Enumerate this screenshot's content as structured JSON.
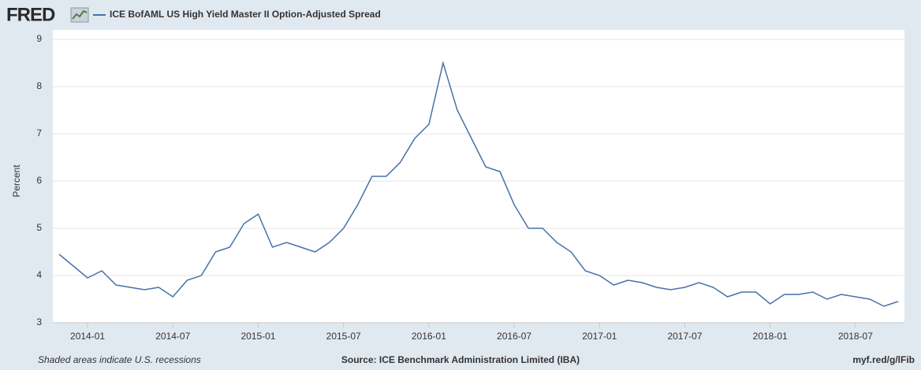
{
  "logo": "FRED",
  "chart_data": {
    "type": "line",
    "ylabel": "Percent",
    "x": [
      "2013-11",
      "2013-12",
      "2014-01",
      "2014-02",
      "2014-03",
      "2014-04",
      "2014-05",
      "2014-06",
      "2014-07",
      "2014-08",
      "2014-09",
      "2014-10",
      "2014-11",
      "2014-12",
      "2015-01",
      "2015-02",
      "2015-03",
      "2015-04",
      "2015-05",
      "2015-06",
      "2015-07",
      "2015-08",
      "2015-09",
      "2015-10",
      "2015-11",
      "2015-12",
      "2016-01",
      "2016-02",
      "2016-03",
      "2016-04",
      "2016-05",
      "2016-06",
      "2016-07",
      "2016-08",
      "2016-09",
      "2016-10",
      "2016-11",
      "2016-12",
      "2017-01",
      "2017-02",
      "2017-03",
      "2017-04",
      "2017-05",
      "2017-06",
      "2017-07",
      "2017-08",
      "2017-09",
      "2017-10",
      "2017-11",
      "2017-12",
      "2018-01",
      "2018-02",
      "2018-03",
      "2018-04",
      "2018-05",
      "2018-06",
      "2018-07",
      "2018-08",
      "2018-09",
      "2018-10"
    ],
    "series": [
      {
        "name": "ICE BofAML US High Yield Master II Option-Adjusted Spread",
        "color": "#4572a7",
        "values": [
          4.45,
          4.2,
          3.95,
          4.1,
          3.8,
          3.75,
          3.7,
          3.75,
          3.55,
          3.9,
          4.0,
          4.5,
          4.6,
          5.1,
          5.3,
          4.6,
          4.7,
          4.6,
          4.5,
          4.7,
          5.0,
          5.5,
          6.1,
          6.1,
          6.4,
          6.9,
          7.2,
          8.5,
          7.5,
          6.9,
          6.3,
          6.2,
          5.5,
          5.0,
          5.0,
          4.7,
          4.5,
          4.1,
          4.0,
          3.8,
          3.9,
          3.85,
          3.75,
          3.7,
          3.75,
          3.85,
          3.75,
          3.55,
          3.65,
          3.65,
          3.4,
          3.6,
          3.6,
          3.65,
          3.5,
          3.6,
          3.55,
          3.5,
          3.35,
          3.45
        ]
      }
    ],
    "xlim": [
      "2013-11",
      "2018-10"
    ],
    "xticks": [
      "2014-01",
      "2014-07",
      "2015-01",
      "2015-07",
      "2016-01",
      "2016-07",
      "2017-01",
      "2017-07",
      "2018-01",
      "2018-07"
    ],
    "ylim": [
      3,
      9
    ],
    "yticks": [
      3,
      4,
      5,
      6,
      7,
      8,
      9
    ],
    "grid": true,
    "notes": [
      "Shaded areas indicate U.S. recessions",
      "Source: ICE Benchmark Administration Limited (IBA)",
      "myf.red/g/lFib"
    ]
  }
}
